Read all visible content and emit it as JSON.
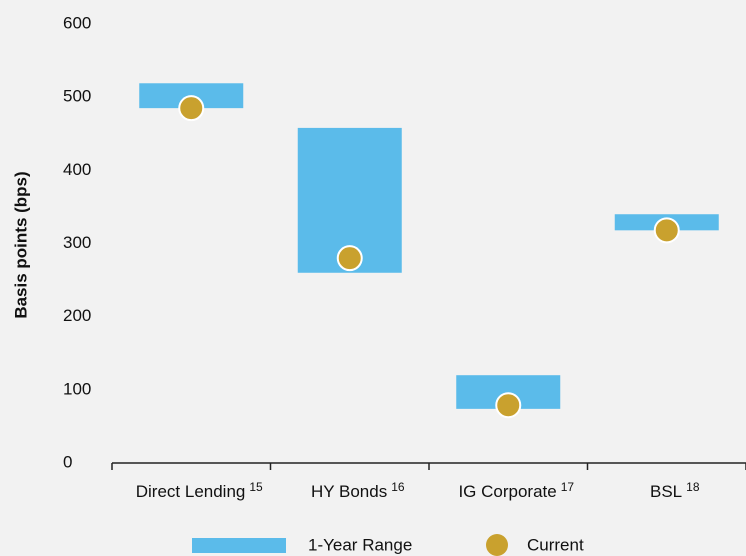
{
  "chart_data": {
    "type": "range_dot",
    "y_label": "Basis points (bps)",
    "categories": [
      "Direct Lending",
      "HY Bonds",
      "IG Corporate",
      "BSL"
    ],
    "footnotes": [
      "15",
      "16",
      "17",
      "18"
    ],
    "series": [
      {
        "name": "1-Year Range",
        "color": "#5bbbea",
        "low": [
          485,
          260,
          74,
          318
        ],
        "high": [
          519,
          458,
          120,
          340
        ]
      },
      {
        "name": "Current",
        "color": "#c9a12e",
        "values": [
          485,
          280,
          79,
          318
        ]
      }
    ],
    "ylim": [
      0,
      600
    ],
    "yticks": [
      0,
      100,
      200,
      300,
      400,
      500,
      600
    ]
  }
}
